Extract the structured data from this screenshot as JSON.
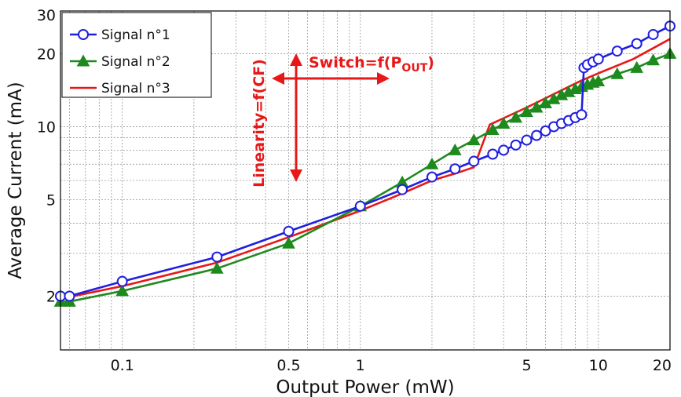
{
  "chart_data": {
    "type": "line",
    "x_scale": "log",
    "y_scale": "log",
    "xlabel": "Output Power (mW)",
    "ylabel": "Average Current (mA)",
    "xlim": [
      0.055,
      20
    ],
    "ylim": [
      1.2,
      30
    ],
    "x_ticks": [
      {
        "value": 0.1,
        "label": "0.1"
      },
      {
        "value": 0.5,
        "label": "0.5"
      },
      {
        "value": 1,
        "label": "1"
      },
      {
        "value": 5,
        "label": "5"
      },
      {
        "value": 10,
        "label": "10"
      },
      {
        "value": 20,
        "label": "20"
      }
    ],
    "y_ticks": [
      {
        "value": 2,
        "label": "2"
      },
      {
        "value": 5,
        "label": "5"
      },
      {
        "value": 10,
        "label": "10"
      },
      {
        "value": 20,
        "label": "20"
      },
      {
        "value": 30,
        "label": "30"
      }
    ],
    "grid": true,
    "legend_position": "top-left",
    "series": [
      {
        "name": "Signal n°1",
        "color": "#1f1fe0",
        "marker": "circle",
        "x": [
          0.055,
          0.06,
          0.1,
          0.25,
          0.5,
          1.0,
          1.5,
          2.0,
          2.5,
          3.0,
          3.6,
          4.0,
          4.5,
          5.0,
          5.5,
          6.0,
          6.5,
          7.0,
          7.5,
          8.0,
          8.5,
          8.7,
          9.0,
          9.5,
          10.0,
          12.0,
          14.5,
          17.0,
          20.0
        ],
        "y": [
          2.0,
          2.0,
          2.3,
          2.9,
          3.7,
          4.7,
          5.5,
          6.2,
          6.7,
          7.2,
          7.7,
          8.0,
          8.4,
          8.8,
          9.2,
          9.6,
          10.0,
          10.3,
          10.6,
          10.9,
          11.2,
          17.5,
          18.0,
          18.5,
          19.0,
          20.5,
          22.0,
          24.0,
          26.0
        ]
      },
      {
        "name": "Signal n°2",
        "color": "#1e8a1e",
        "marker": "triangle",
        "x": [
          0.055,
          0.06,
          0.1,
          0.25,
          0.5,
          1.0,
          1.5,
          2.0,
          2.5,
          3.0,
          3.6,
          4.0,
          4.5,
          5.0,
          5.5,
          6.0,
          6.5,
          7.0,
          7.5,
          8.0,
          8.5,
          9.0,
          9.5,
          10.0,
          12.0,
          14.5,
          17.0,
          20.0
        ],
        "y": [
          1.9,
          1.9,
          2.1,
          2.6,
          3.3,
          4.7,
          5.9,
          7.0,
          8.0,
          8.8,
          9.7,
          10.3,
          10.9,
          11.5,
          12.0,
          12.5,
          13.0,
          13.5,
          13.9,
          14.3,
          14.6,
          14.9,
          15.2,
          15.4,
          16.5,
          17.5,
          18.8,
          20.0
        ]
      },
      {
        "name": "Signal n°3",
        "color": "#e81818",
        "marker": "none",
        "x": [
          0.055,
          0.1,
          0.25,
          0.5,
          1.0,
          1.5,
          2.0,
          2.5,
          3.0,
          3.5,
          5.0,
          8.5,
          10.0,
          14.0,
          20.0
        ],
        "y": [
          1.95,
          2.2,
          2.75,
          3.5,
          4.5,
          5.3,
          6.0,
          6.4,
          6.8,
          10.2,
          12.0,
          15.5,
          16.6,
          19.0,
          23.0
        ]
      }
    ],
    "annotations": [
      {
        "text": "Linearity=f(CF)",
        "color": "#e81818",
        "orientation": "vertical"
      },
      {
        "text": "Switch=f(P",
        "subscript": "OUT",
        "suffix": ")",
        "color": "#e81818",
        "orientation": "horizontal"
      }
    ]
  }
}
